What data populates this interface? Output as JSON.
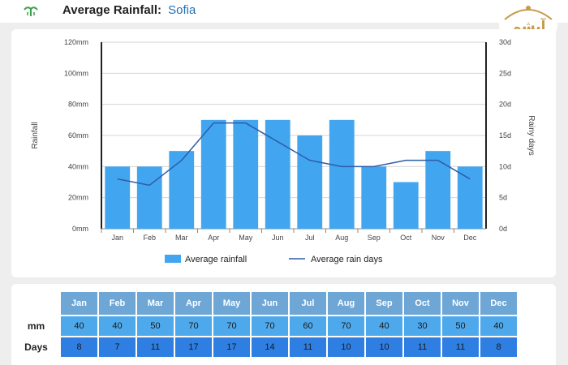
{
  "header": {
    "title": "Average Rainfall:",
    "city": "Sofia",
    "brand_text": "آیشم"
  },
  "chart_data": {
    "type": "bar",
    "categories": [
      "Jan",
      "Feb",
      "Mar",
      "Apr",
      "May",
      "Jun",
      "Jul",
      "Aug",
      "Sep",
      "Oct",
      "Nov",
      "Dec"
    ],
    "series": [
      {
        "name": "Average rainfall",
        "kind": "bar",
        "axis": "left",
        "values": [
          40,
          40,
          50,
          70,
          70,
          70,
          60,
          70,
          40,
          30,
          50,
          40
        ],
        "color": "#42a5f0"
      },
      {
        "name": "Average rain days",
        "kind": "line",
        "axis": "right",
        "values": [
          8,
          7,
          11,
          17,
          17,
          14,
          11,
          10,
          10,
          11,
          11,
          8
        ],
        "color": "#2d5ea8"
      }
    ],
    "ylabel": "Rainfall",
    "y2label": "Rainy days",
    "ylim": [
      0,
      120
    ],
    "y2lim": [
      0,
      30
    ],
    "yticks": [
      "0mm",
      "20mm",
      "40mm",
      "60mm",
      "80mm",
      "100mm",
      "120mm"
    ],
    "y2ticks": [
      "0d",
      "5d",
      "10d",
      "15d",
      "20d",
      "25d",
      "30d"
    ],
    "grid": true,
    "legend_position": "bottom-center"
  },
  "table": {
    "row_labels": {
      "mm": "mm",
      "days": "Days"
    },
    "months": [
      "Jan",
      "Feb",
      "Mar",
      "Apr",
      "May",
      "Jun",
      "Jul",
      "Aug",
      "Sep",
      "Oct",
      "Nov",
      "Dec"
    ],
    "mm": [
      "40",
      "40",
      "50",
      "70",
      "70",
      "70",
      "60",
      "70",
      "40",
      "30",
      "50",
      "40"
    ],
    "days": [
      "8",
      "7",
      "11",
      "17",
      "17",
      "14",
      "11",
      "10",
      "10",
      "11",
      "11",
      "8"
    ]
  }
}
